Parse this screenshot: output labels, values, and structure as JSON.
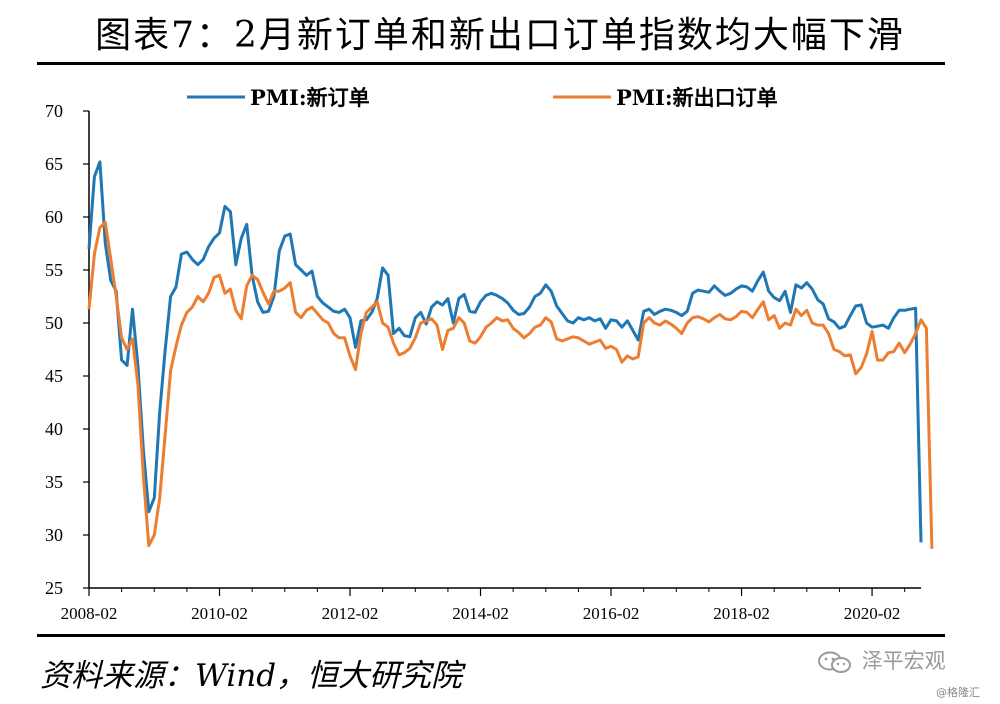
{
  "header": {
    "title": "图表7：2月新订单和新出口订单指数均大幅下滑"
  },
  "footer": {
    "source": "资料来源：Wind，恒大研究院",
    "watermark": "泽平宏观",
    "credit": "@格隆汇"
  },
  "chart_data": {
    "type": "line",
    "title": "图表7：2月新订单和新出口订单指数均大幅下滑",
    "xlabel": "",
    "ylabel": "",
    "ylim": [
      25,
      70
    ],
    "y_ticks": [
      25,
      30,
      35,
      40,
      45,
      50,
      55,
      60,
      65,
      70
    ],
    "x_tick_labels": [
      "2008-02",
      "2010-02",
      "2012-02",
      "2014-02",
      "2016-02",
      "2018-02",
      "2020-02"
    ],
    "x_start": "2008-02",
    "x_end": "2020-02",
    "grid": false,
    "legend_position": "top",
    "series": [
      {
        "name": "PMI:新订单",
        "color": "#1f77b4",
        "values": [
          57.0,
          63.8,
          65.2,
          57.5,
          54.0,
          53.0,
          46.5,
          46.0,
          51.3,
          46.0,
          38.0,
          32.2,
          33.5,
          41.6,
          47.4,
          52.5,
          53.4,
          56.5,
          56.7,
          56.0,
          55.5,
          56.0,
          57.2,
          58.0,
          58.5,
          61.0,
          60.5,
          55.5,
          58.0,
          59.3,
          54.5,
          52.0,
          51.0,
          51.1,
          52.5,
          56.8,
          58.2,
          58.4,
          55.5,
          55.0,
          54.5,
          54.9,
          52.5,
          51.9,
          51.5,
          51.1,
          51.0,
          51.3,
          50.5,
          47.7,
          50.2,
          50.3,
          51.0,
          52.3,
          55.2,
          54.5,
          49.0,
          49.5,
          48.8,
          48.7,
          50.5,
          51.0,
          49.9,
          51.5,
          52.0,
          51.7,
          52.3,
          50.0,
          52.3,
          52.7,
          51.1,
          51.0,
          52.0,
          52.6,
          52.8,
          52.6,
          52.3,
          51.9,
          51.2,
          50.8,
          50.9,
          51.5,
          52.5,
          52.8,
          53.6,
          53.0,
          51.6,
          50.9,
          50.2,
          50.0,
          50.5,
          50.3,
          50.5,
          50.2,
          50.4,
          49.5,
          50.3,
          50.2,
          49.6,
          50.2,
          49.3,
          48.4,
          51.1,
          51.3,
          50.8,
          51.1,
          51.3,
          51.2,
          51.0,
          50.7,
          51.1,
          52.8,
          53.1,
          53.0,
          52.9,
          53.5,
          53.0,
          52.6,
          52.8,
          53.2,
          53.5,
          53.4,
          53.0,
          54.0,
          54.8,
          53.0,
          52.4,
          52.1,
          53.0,
          51.0,
          53.6,
          53.3,
          53.8,
          53.2,
          52.2,
          51.8,
          50.4,
          50.1,
          49.5,
          49.7,
          50.7,
          51.6,
          51.7,
          50.0,
          49.6,
          49.7,
          49.8,
          49.5,
          50.5,
          51.2,
          51.2,
          51.3,
          51.4,
          29.3
        ],
        "note_last_value": "2020-02 value"
      },
      {
        "name": "PMI:新出口订单",
        "color": "#ed7d31",
        "values": [
          51.3,
          56.5,
          59.0,
          59.5,
          56.0,
          52.5,
          48.6,
          47.5,
          48.5,
          44.2,
          35.5,
          29.0,
          30.0,
          33.5,
          39.4,
          45.5,
          47.8,
          49.8,
          51.0,
          51.5,
          52.5,
          52.0,
          52.8,
          54.3,
          54.5,
          52.8,
          53.2,
          51.2,
          50.4,
          53.5,
          54.5,
          54.1,
          52.9,
          51.8,
          53.0,
          53.0,
          53.3,
          53.8,
          51.0,
          50.5,
          51.2,
          51.5,
          50.9,
          50.3,
          50.0,
          49.0,
          48.6,
          48.6,
          46.9,
          45.6,
          49.0,
          51.0,
          51.5,
          52.0,
          50.0,
          49.6,
          48.1,
          47.0,
          47.2,
          47.6,
          48.6,
          50.0,
          50.2,
          50.4,
          49.8,
          47.5,
          49.3,
          49.5,
          50.5,
          50.0,
          48.3,
          48.1,
          48.7,
          49.6,
          50.0,
          50.5,
          50.2,
          50.3,
          49.5,
          49.1,
          48.6,
          49.0,
          49.6,
          49.8,
          50.5,
          50.1,
          48.5,
          48.3,
          48.5,
          48.7,
          48.6,
          48.3,
          48.0,
          48.2,
          48.4,
          47.6,
          47.8,
          47.5,
          46.3,
          46.9,
          46.6,
          46.8,
          50.0,
          50.5,
          50.0,
          49.8,
          50.2,
          49.9,
          49.5,
          49.0,
          50.0,
          50.5,
          50.6,
          50.4,
          50.1,
          50.5,
          50.8,
          50.4,
          50.3,
          50.6,
          51.1,
          51.0,
          50.5,
          51.3,
          52.0,
          50.3,
          50.7,
          49.5,
          50.0,
          49.8,
          51.3,
          50.7,
          51.2,
          50.0,
          49.8,
          49.8,
          49.0,
          47.5,
          47.3,
          46.9,
          47.0,
          45.2,
          45.8,
          47.1,
          49.2,
          46.5,
          46.5,
          47.2,
          47.3,
          48.1,
          47.2,
          48.0,
          49.0,
          50.3,
          49.5,
          28.7
        ],
        "note_last_value": "2020-02 value"
      }
    ]
  }
}
